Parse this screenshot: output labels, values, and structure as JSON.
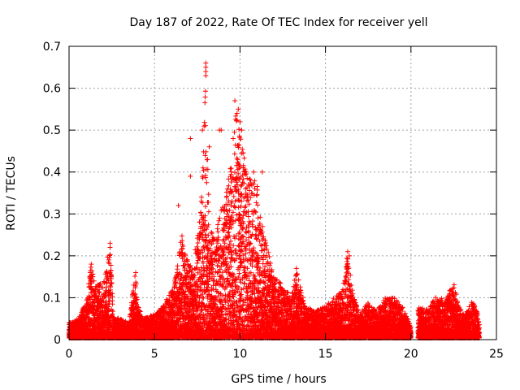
{
  "chart_data": {
    "type": "scatter",
    "title": "Day 187 of 2022, Rate Of TEC Index for receiver yell",
    "xlabel": "GPS time / hours",
    "ylabel": "ROTI / TECUs",
    "xlim": [
      0,
      25
    ],
    "ylim": [
      0,
      0.7
    ],
    "xticks": [
      0,
      5,
      10,
      15,
      20,
      25
    ],
    "yticks": [
      0,
      0.1,
      0.2,
      0.3,
      0.4,
      0.5,
      0.6,
      0.7
    ],
    "grid": true,
    "marker": "plus",
    "color": "#ff0000",
    "envelope": {
      "x": [
        0.0,
        0.5,
        1.0,
        1.3,
        1.6,
        2.0,
        2.4,
        2.6,
        3.0,
        3.5,
        3.9,
        4.0,
        4.3,
        5.0,
        5.5,
        6.0,
        6.3,
        6.6,
        7.0,
        7.3,
        7.7,
        8.0,
        8.2,
        8.5,
        8.8,
        9.2,
        9.5,
        9.8,
        10.0,
        10.3,
        10.6,
        11.0,
        11.3,
        11.6,
        12.0,
        12.5,
        13.0,
        13.3,
        13.8,
        14.5,
        15.0,
        15.5,
        16.0,
        16.3,
        16.6,
        17.0,
        17.5,
        18.0,
        18.5,
        19.0,
        19.5,
        20.0,
        20.4,
        21.0,
        21.5,
        22.0,
        22.5,
        22.8,
        23.2,
        23.6,
        24.0
      ],
      "y": [
        0.04,
        0.05,
        0.09,
        0.18,
        0.13,
        0.14,
        0.23,
        0.06,
        0.05,
        0.04,
        0.17,
        0.09,
        0.05,
        0.06,
        0.08,
        0.12,
        0.16,
        0.26,
        0.18,
        0.2,
        0.3,
        0.64,
        0.28,
        0.24,
        0.3,
        0.35,
        0.43,
        0.57,
        0.5,
        0.42,
        0.4,
        0.37,
        0.28,
        0.22,
        0.15,
        0.13,
        0.1,
        0.17,
        0.08,
        0.07,
        0.08,
        0.1,
        0.12,
        0.21,
        0.11,
        0.06,
        0.09,
        0.07,
        0.1,
        0.1,
        0.08,
        0.03,
        0.08,
        0.07,
        0.11,
        0.09,
        0.14,
        0.08,
        0.06,
        0.1,
        0.05
      ]
    },
    "gaps": [
      [
        20.0,
        20.4
      ]
    ],
    "outliers": [
      {
        "x": 7.1,
        "y": 0.48
      },
      {
        "x": 7.1,
        "y": 0.39
      },
      {
        "x": 7.8,
        "y": 0.5
      },
      {
        "x": 8.0,
        "y": 0.66
      },
      {
        "x": 8.0,
        "y": 0.65
      },
      {
        "x": 8.0,
        "y": 0.64
      },
      {
        "x": 8.0,
        "y": 0.63
      },
      {
        "x": 8.2,
        "y": 0.46
      },
      {
        "x": 8.1,
        "y": 0.43
      },
      {
        "x": 8.8,
        "y": 0.5
      },
      {
        "x": 8.9,
        "y": 0.5
      },
      {
        "x": 9.7,
        "y": 0.57
      },
      {
        "x": 9.9,
        "y": 0.55
      },
      {
        "x": 10.1,
        "y": 0.5
      },
      {
        "x": 10.0,
        "y": 0.52
      },
      {
        "x": 9.6,
        "y": 0.48
      },
      {
        "x": 10.8,
        "y": 0.4
      },
      {
        "x": 11.3,
        "y": 0.4
      },
      {
        "x": 16.3,
        "y": 0.21
      },
      {
        "x": 16.4,
        "y": 0.2
      },
      {
        "x": 13.3,
        "y": 0.17
      },
      {
        "x": 1.3,
        "y": 0.18
      },
      {
        "x": 2.4,
        "y": 0.23
      },
      {
        "x": 2.4,
        "y": 0.22
      },
      {
        "x": 3.9,
        "y": 0.16
      },
      {
        "x": 6.4,
        "y": 0.32
      }
    ]
  }
}
